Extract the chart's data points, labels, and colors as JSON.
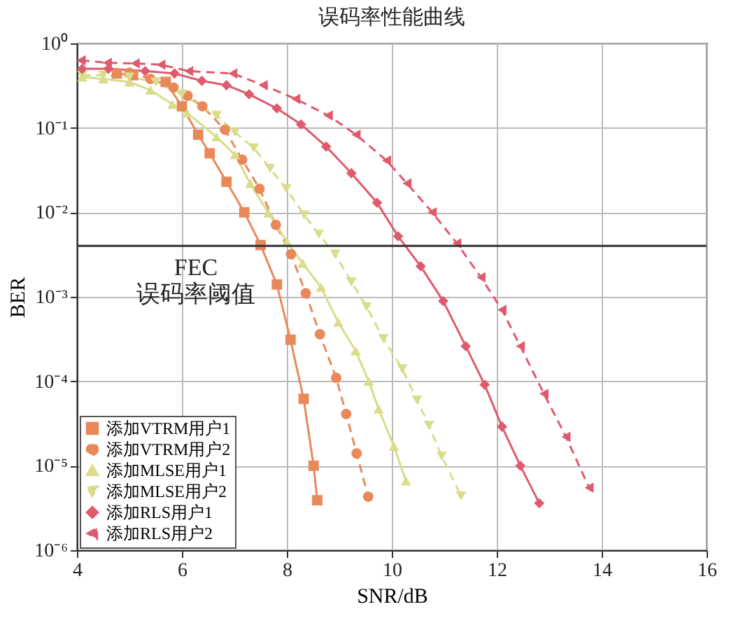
{
  "chart_data": {
    "type": "line",
    "title": "误码率性能曲线",
    "xlabel": "SNR/dB",
    "ylabel": "BER",
    "log": "y",
    "grid": true,
    "legend": "bottom left",
    "xlim": [
      4,
      16
    ],
    "xticks": [
      4,
      6,
      8,
      10,
      12,
      14,
      16
    ],
    "ylim": [
      1e-06,
      1
    ],
    "yticks": [
      {
        "value": 1e-06,
        "label": "10⁻⁶"
      },
      {
        "value": 1e-05,
        "label": "10⁻⁵"
      },
      {
        "value": 0.0001,
        "label": "10⁻⁴"
      },
      {
        "value": 0.001,
        "label": "10⁻³"
      },
      {
        "value": 0.01,
        "label": "10⁻²"
      },
      {
        "value": 0.1,
        "label": "10⁻¹"
      },
      {
        "value": 1,
        "label": "10⁰"
      }
    ],
    "ref_lines": [
      {
        "axis": "y",
        "value": 0.004,
        "label": "FEC\n误码率阈值",
        "color": "#333333",
        "line_style": "solid"
      }
    ],
    "series": [
      {
        "name": "添加VTRM用户1",
        "color": "#e8895a",
        "marker": "square",
        "line_style": "solid",
        "x": [
          4.76,
          5.07,
          5.38,
          5.69,
          6.0,
          6.31,
          6.53,
          6.85,
          7.19,
          7.5,
          7.81,
          8.07,
          8.32,
          8.51,
          8.58
        ],
        "values": [
          0.44,
          0.42,
          null,
          0.35,
          0.18,
          0.083,
          0.05,
          0.023,
          0.01,
          0.0041,
          0.0014,
          0.00031,
          6.2e-05,
          1e-05,
          3.9e-06
        ]
      },
      {
        "name": "添加VTRM用户2",
        "color": "#e8895a",
        "marker": "circle",
        "line_style": "dashed",
        "x": [
          5.0,
          5.4,
          5.84,
          6.11,
          6.39,
          6.82,
          7.15,
          7.48,
          7.79,
          8.08,
          8.36,
          8.63,
          8.94,
          9.13,
          9.33,
          9.55
        ],
        "values": [
          0.45,
          0.38,
          0.3,
          0.24,
          0.18,
          0.095,
          0.042,
          0.019,
          0.0071,
          0.0032,
          0.0011,
          0.00036,
          0.00011,
          4.1e-05,
          1.4e-05,
          4.3e-06
        ]
      },
      {
        "name": "添加MLSE用户1",
        "color": "#d9dc8a",
        "marker": "triangle-up",
        "line_style": "solid",
        "x": [
          4.1,
          4.5,
          5.0,
          5.4,
          5.82,
          6.1,
          6.66,
          7.01,
          7.3,
          7.65,
          8.0,
          8.3,
          8.65,
          8.98,
          9.31,
          9.56,
          9.75,
          10.04,
          10.27
        ],
        "values": [
          0.4,
          0.38,
          0.35,
          0.28,
          0.19,
          0.15,
          0.078,
          0.048,
          0.022,
          0.0098,
          0.0045,
          0.0025,
          0.0013,
          0.0005,
          0.00023,
          0.0001,
          4.7e-05,
          1.7e-05,
          6.6e-06
        ]
      },
      {
        "name": "添加MLSE用户2",
        "color": "#d9dc8a",
        "marker": "triangle-down",
        "line_style": "dashed",
        "x": [
          4.1,
          4.5,
          5.0,
          5.5,
          6.0,
          6.66,
          7.01,
          7.37,
          7.68,
          7.99,
          8.33,
          8.61,
          8.92,
          9.23,
          9.52,
          9.84,
          10.2,
          10.48,
          10.71,
          10.95,
          11.32
        ],
        "values": [
          0.42,
          0.42,
          0.4,
          0.35,
          0.25,
          0.14,
          0.089,
          0.058,
          0.033,
          0.019,
          0.0093,
          0.0055,
          0.0032,
          0.0015,
          0.00076,
          0.00032,
          0.00014,
          6e-05,
          3e-05,
          1.3e-05,
          4.4e-06
        ]
      },
      {
        "name": "添加RLS用户1",
        "color": "#e05a6e",
        "marker": "diamond",
        "line_style": "solid",
        "x": [
          4.1,
          4.6,
          5.3,
          5.86,
          6.38,
          6.85,
          7.28,
          7.81,
          8.27,
          8.75,
          9.23,
          9.72,
          10.12,
          10.55,
          10.98,
          11.41,
          11.77,
          12.1,
          12.45,
          12.81
        ],
        "values": [
          0.5,
          0.5,
          0.47,
          0.44,
          0.36,
          0.32,
          0.25,
          0.17,
          0.11,
          0.06,
          0.029,
          0.013,
          0.0052,
          0.0023,
          0.00089,
          0.00026,
          9.1e-05,
          2.9e-05,
          1e-05,
          3.6e-06
        ]
      },
      {
        "name": "添加RLS用户2",
        "color": "#e05a6e",
        "marker": "triangle-left",
        "line_style": "dashed",
        "x": [
          4.08,
          4.58,
          5.11,
          5.6,
          6.13,
          6.97,
          7.55,
          8.17,
          8.79,
          9.32,
          9.9,
          10.29,
          10.77,
          11.24,
          11.7,
          12.1,
          12.45,
          12.9,
          13.32,
          13.76
        ],
        "values": [
          0.63,
          0.59,
          0.58,
          0.56,
          0.47,
          0.44,
          0.32,
          0.22,
          0.14,
          0.083,
          0.041,
          0.022,
          0.01,
          0.0043,
          0.0017,
          0.0007,
          0.00026,
          7.1e-05,
          2.2e-05,
          5.5e-06
        ]
      }
    ]
  }
}
